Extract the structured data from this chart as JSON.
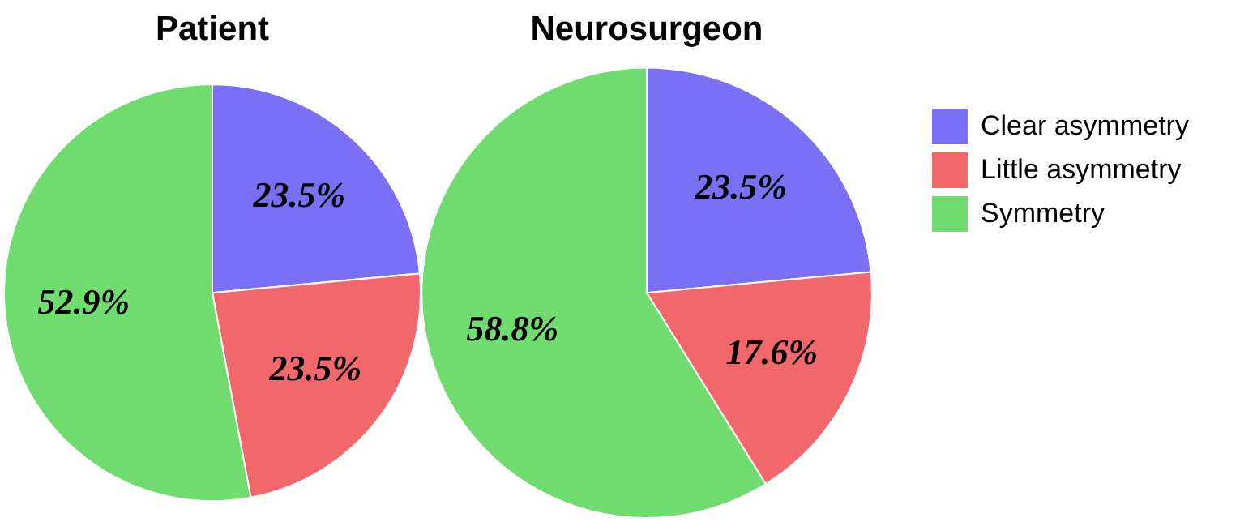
{
  "chart_data": [
    {
      "type": "pie",
      "title": "Patient",
      "categories": [
        null,
        null,
        null
      ],
      "values": [
        23.5,
        23.5,
        52.9
      ],
      "value_labels": [
        "23.5%",
        "23.5%",
        "52.9%"
      ],
      "colors": [
        "#7a6ff5",
        "#f2676c",
        "#70db6f"
      ],
      "legend": false
    },
    {
      "type": "pie",
      "title": "Neurosurgeon",
      "categories": [
        "Clear asymmetry",
        "Little asymmetry",
        "Symmetry"
      ],
      "values": [
        23.5,
        17.6,
        58.8
      ],
      "value_labels": [
        "23.5%",
        "17.6%",
        "58.8%"
      ],
      "colors": [
        "#7a6ff5",
        "#f2676c",
        "#70db6f"
      ],
      "legend": "right"
    }
  ]
}
